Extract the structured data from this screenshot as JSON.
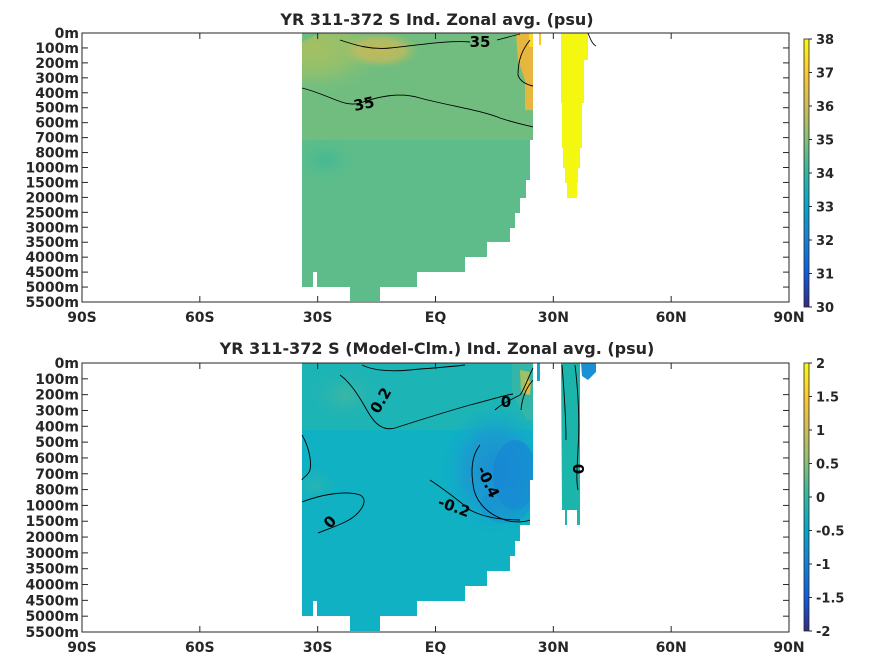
{
  "chart_data": [
    {
      "type": "heatmap",
      "title": "YR 311-372 S Ind. Zonal avg. (psu)",
      "x_ticks": [
        "90S",
        "60S",
        "30S",
        "EQ",
        "30N",
        "60N",
        "90N"
      ],
      "y_ticks": [
        "0m",
        "100m",
        "200m",
        "300m",
        "400m",
        "500m",
        "600m",
        "700m",
        "800m",
        "1000m",
        "1500m",
        "2000m",
        "2500m",
        "3000m",
        "3500m",
        "4000m",
        "4500m",
        "5000m",
        "5500m"
      ],
      "colorbar": {
        "ticks": [
          "30",
          "31",
          "32",
          "33",
          "34",
          "35",
          "36",
          "37",
          "38"
        ],
        "min": 30,
        "max": 38
      },
      "contour_labels": [
        "35",
        "35"
      ],
      "grid": false
    },
    {
      "type": "heatmap",
      "title": "YR 311-372 S (Model-Clm.) Ind. Zonal avg. (psu)",
      "x_ticks": [
        "90S",
        "60S",
        "30S",
        "EQ",
        "30N",
        "60N",
        "90N"
      ],
      "y_ticks": [
        "0m",
        "100m",
        "200m",
        "300m",
        "400m",
        "500m",
        "600m",
        "700m",
        "800m",
        "1000m",
        "1500m",
        "2000m",
        "3000m",
        "3500m",
        "4000m",
        "4500m",
        "5000m",
        "5500m"
      ],
      "colorbar": {
        "ticks": [
          "2",
          "1.5",
          "1",
          "0.5",
          "0",
          "-0.5",
          "-1",
          "-1.5",
          "-2"
        ],
        "min": -2,
        "max": 2
      },
      "contour_labels": [
        "0.2",
        "0",
        "0",
        "-0.4",
        "-0.2",
        "0"
      ],
      "grid": false
    }
  ],
  "colors": {
    "parula": [
      "#352a87",
      "#0f5cdd",
      "#1481d6",
      "#06a4ca",
      "#2eb7a4",
      "#87bf77",
      "#d1bb59",
      "#fec832",
      "#f9fb0e"
    ]
  }
}
